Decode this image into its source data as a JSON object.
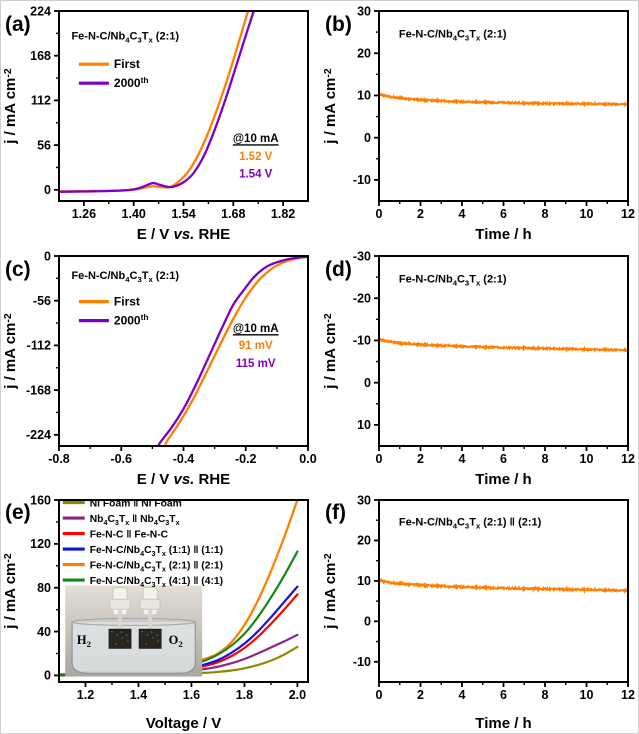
{
  "figure_background": "#ffffff",
  "axis_color": "#000000",
  "chart_data": [
    {
      "letter": "(a)",
      "type": "line",
      "xlabel": "E / V vs. RHE",
      "ylabel": "j / mA cm⁻²",
      "xlim": [
        1.19,
        1.89
      ],
      "ylim": [
        -14,
        224
      ],
      "xtick_vals": [
        1.26,
        1.4,
        1.54,
        1.68,
        1.82
      ],
      "xtick_labels": [
        "1.26",
        "1.40",
        "1.54",
        "1.68",
        "1.82"
      ],
      "ytick_vals": [
        0,
        56,
        112,
        168,
        224
      ],
      "ytick_labels": [
        "0",
        "56",
        "112",
        "168",
        "224"
      ],
      "title": {
        "text": "Fe-N-C/Nb₄C₃Tₓ (2:1)",
        "x": 0.05,
        "y": 0.15,
        "size": 11
      },
      "legend": {
        "x": 0.08,
        "y": 0.3,
        "dy": 19,
        "sample": 30,
        "size": 12,
        "items": [
          {
            "label": "First",
            "color": "#FF8000"
          },
          {
            "label": "2000ᵗʰ",
            "color": "#7D00C8"
          }
        ]
      },
      "annotations": [
        {
          "text": "@10 mA",
          "color": "#000000",
          "underline": true,
          "x": 0.79,
          "y": 0.69,
          "size": 11.5
        },
        {
          "text": "1.52 V",
          "color": "#FF8000",
          "x": 0.79,
          "y": 0.785,
          "size": 11.5
        },
        {
          "text": "1.54 V",
          "color": "#7D00C8",
          "x": 0.79,
          "y": 0.875,
          "size": 11.5
        }
      ],
      "series": [
        {
          "name": "First",
          "color": "#FF8000",
          "width": 2.3,
          "x": [
            1.19,
            1.26,
            1.33,
            1.38,
            1.41,
            1.44,
            1.455,
            1.475,
            1.5,
            1.52,
            1.54,
            1.56,
            1.585,
            1.61,
            1.64,
            1.67,
            1.7,
            1.735
          ],
          "y": [
            -2,
            -1.7,
            -1.2,
            -0.4,
            0.8,
            3.5,
            4.5,
            3.5,
            3.2,
            8,
            16,
            27,
            47,
            72,
            108,
            148,
            192,
            245
          ]
        },
        {
          "name": "2000th",
          "color": "#7D00C8",
          "width": 2.3,
          "x": [
            1.19,
            1.26,
            1.33,
            1.38,
            1.41,
            1.435,
            1.455,
            1.475,
            1.5,
            1.52,
            1.545,
            1.57,
            1.6,
            1.63,
            1.66,
            1.69,
            1.72,
            1.755
          ],
          "y": [
            -2.5,
            -2,
            -1.5,
            -0.5,
            1.5,
            5.5,
            8.5,
            6,
            3.5,
            5,
            11,
            22,
            45,
            78,
            116,
            158,
            200,
            248
          ]
        }
      ]
    },
    {
      "letter": "(b)",
      "type": "line",
      "xlabel": "Time / h",
      "ylabel": "j / mA cm⁻²",
      "xlim": [
        0,
        12
      ],
      "ylim": [
        -15,
        30
      ],
      "xtick_vals": [
        0,
        2,
        4,
        6,
        8,
        10,
        12
      ],
      "xtick_labels": [
        "0",
        "2",
        "4",
        "6",
        "8",
        "10",
        "12"
      ],
      "ytick_vals": [
        -10,
        0,
        10,
        20,
        30
      ],
      "ytick_labels": [
        "-10",
        "0",
        "10",
        "20",
        "30"
      ],
      "title": {
        "text": "Fe-N-C/Nb₄C₃Tₓ (2:1)",
        "x": 0.08,
        "y": 0.14,
        "size": 11
      },
      "series": [
        {
          "name": "stability",
          "color": "#FF8000",
          "width": 2.0,
          "noise": 0.35,
          "x": [
            0,
            0.3,
            0.8,
            1.5,
            2.5,
            4,
            6,
            8,
            10,
            12
          ],
          "y": [
            10.3,
            9.9,
            9.5,
            9.1,
            8.8,
            8.5,
            8.3,
            8.1,
            8.0,
            7.9
          ]
        }
      ]
    },
    {
      "letter": "(c)",
      "type": "line",
      "xlabel": "E / V vs. RHE",
      "ylabel": "j / mA cm⁻²",
      "xlim": [
        -0.8,
        0
      ],
      "ylim": [
        -238,
        0
      ],
      "xtick_vals": [
        -0.8,
        -0.6,
        -0.4,
        -0.2,
        0.0
      ],
      "xtick_labels": [
        "-0.8",
        "-0.6",
        "-0.4",
        "-0.2",
        "0.0"
      ],
      "ytick_vals": [
        -224,
        -168,
        -112,
        -56,
        0
      ],
      "ytick_labels": [
        "-224",
        "-168",
        "-112",
        "-56",
        "0"
      ],
      "title": {
        "text": "Fe-N-C/Nb₄C₃Tₓ (2:1)",
        "x": 0.05,
        "y": 0.12,
        "size": 11
      },
      "legend": {
        "x": 0.08,
        "y": 0.26,
        "dy": 19,
        "sample": 30,
        "size": 12,
        "items": [
          {
            "label": "First",
            "color": "#FF8000"
          },
          {
            "label": "2000ᵗʰ",
            "color": "#7D00C8"
          }
        ]
      },
      "annotations": [
        {
          "text": "@10 mA",
          "color": "#000000",
          "underline": true,
          "x": 0.79,
          "y": 0.4,
          "size": 11.5
        },
        {
          "text": "91 mV",
          "color": "#FF8000",
          "x": 0.79,
          "y": 0.49,
          "size": 11.5
        },
        {
          "text": "115 mV",
          "color": "#7D00C8",
          "x": 0.79,
          "y": 0.585,
          "size": 11.5
        }
      ],
      "series": [
        {
          "name": "First",
          "color": "#FF8000",
          "width": 2.3,
          "x": [
            0,
            -0.03,
            -0.06,
            -0.091,
            -0.12,
            -0.15,
            -0.18,
            -0.21,
            -0.25,
            -0.29,
            -0.33,
            -0.37,
            -0.41,
            -0.45,
            -0.458
          ],
          "y": [
            -1,
            -2.5,
            -5.5,
            -10,
            -17,
            -27,
            -41,
            -58,
            -86,
            -117,
            -149,
            -180,
            -207,
            -230,
            -236
          ]
        },
        {
          "name": "2000th",
          "color": "#7D00C8",
          "width": 2.3,
          "x": [
            0,
            -0.03,
            -0.07,
            -0.115,
            -0.145,
            -0.175,
            -0.205,
            -0.24,
            -0.275,
            -0.315,
            -0.355,
            -0.395,
            -0.435,
            -0.472,
            -0.48
          ],
          "y": [
            -1,
            -2,
            -4.5,
            -10,
            -16.5,
            -27,
            -42,
            -61,
            -89,
            -123,
            -157,
            -188,
            -213,
            -232,
            -237
          ]
        }
      ]
    },
    {
      "letter": "(d)",
      "type": "line",
      "xlabel": "Time / h",
      "ylabel": "j / mA cm⁻²",
      "xlim": [
        0,
        12
      ],
      "ylim": [
        15,
        -30
      ],
      "xtick_vals": [
        0,
        2,
        4,
        6,
        8,
        10,
        12
      ],
      "xtick_labels": [
        "0",
        "2",
        "4",
        "6",
        "8",
        "10",
        "12"
      ],
      "ytick_vals": [
        -30,
        -20,
        -10,
        0,
        10
      ],
      "ytick_labels": [
        "-30",
        "-20",
        "-10",
        "0",
        "10"
      ],
      "title": {
        "text": "Fe-N-C/Nb₄C₃Tₓ (2:1)",
        "x": 0.08,
        "y": 0.14,
        "size": 11
      },
      "series": [
        {
          "name": "stability",
          "color": "#FF8000",
          "width": 2.0,
          "noise": 0.35,
          "x": [
            0,
            0.3,
            0.8,
            1.5,
            2.5,
            4,
            6,
            8,
            10,
            12
          ],
          "y": [
            -10.2,
            -9.9,
            -9.5,
            -9.2,
            -8.9,
            -8.6,
            -8.3,
            -8.1,
            -7.9,
            -7.7
          ]
        }
      ]
    },
    {
      "letter": "(e)",
      "type": "line",
      "xlabel": "Voltage / V",
      "ylabel": "j / mA cm⁻²",
      "xlim": [
        1.1,
        2.04
      ],
      "ylim": [
        -6,
        160
      ],
      "xtick_vals": [
        1.2,
        1.4,
        1.6,
        1.8,
        2.0
      ],
      "xtick_labels": [
        "1.2",
        "1.4",
        "1.6",
        "1.8",
        "2.0"
      ],
      "ytick_vals": [
        0,
        40,
        80,
        120,
        160
      ],
      "ytick_labels": [
        "0",
        "40",
        "80",
        "120",
        "160"
      ],
      "legend": {
        "x": 0.015,
        "y": 0.035,
        "dy": 15.5,
        "sample": 22,
        "size": 10.3,
        "items": [
          {
            "label": "Ni Foam ‖ Ni Foam",
            "color": "#8B8B00"
          },
          {
            "label": "Nb₄C₃Tₓ ‖ Nb₄C₃Tₓ",
            "color": "#8E218E"
          },
          {
            "label": "Fe-N-C ‖ Fe-N-C",
            "color": "#FF0000"
          },
          {
            "label": "Fe-N-C/Nb₄C₃Tₓ (1:1) ‖ (1:1)",
            "color": "#1414DC"
          },
          {
            "label": "Fe-N-C/Nb₄C₃Tₓ (2:1) ‖ (2:1)",
            "color": "#FF8000"
          },
          {
            "label": "Fe-N-C/Nb₄C₃Tₓ (4:1) ‖ (4:1)",
            "color": "#168616"
          }
        ]
      },
      "inset": {
        "x": 0.025,
        "y": 0.47,
        "w": 0.55,
        "h": 0.5,
        "labels": [
          "H₂",
          "O₂"
        ]
      },
      "series": [
        {
          "name": "Ni Foam",
          "color": "#8B8B00",
          "width": 2.2,
          "x": [
            1.1,
            1.15,
            1.2,
            1.25,
            1.3,
            1.35,
            1.4,
            1.45,
            1.5,
            1.55,
            1.6,
            1.65,
            1.7,
            1.75,
            1.8,
            1.85,
            1.9,
            1.95,
            2.0
          ],
          "y": [
            0,
            0,
            0,
            0.1,
            0.2,
            0.3,
            0.4,
            0.6,
            0.9,
            1.2,
            1.7,
            2.3,
            3.2,
            4.5,
            6.5,
            9.5,
            13.5,
            19,
            26
          ]
        },
        {
          "name": "Nb4C3Tx",
          "color": "#8E218E",
          "width": 2.2,
          "x": [
            1.1,
            1.15,
            1.2,
            1.25,
            1.3,
            1.35,
            1.4,
            1.45,
            1.5,
            1.55,
            1.6,
            1.65,
            1.7,
            1.75,
            1.8,
            1.85,
            1.9,
            1.95,
            2.0
          ],
          "y": [
            0.2,
            0.3,
            0.4,
            0.5,
            0.7,
            0.9,
            1.2,
            1.6,
            2.2,
            3,
            4.2,
            5.8,
            8,
            11,
            15,
            20,
            25.5,
            31,
            37
          ]
        },
        {
          "name": "Fe-N-C",
          "color": "#FF0000",
          "width": 2.2,
          "x": [
            1.1,
            1.15,
            1.2,
            1.25,
            1.3,
            1.35,
            1.4,
            1.45,
            1.5,
            1.55,
            1.6,
            1.65,
            1.7,
            1.75,
            1.8,
            1.85,
            1.9,
            1.95,
            2.0
          ],
          "y": [
            0.2,
            0.3,
            0.4,
            0.6,
            0.8,
            1.1,
            1.5,
            2.1,
            3,
            4.3,
            6,
            8.5,
            12,
            17.5,
            25,
            35,
            47,
            60,
            74
          ]
        },
        {
          "name": "1:1",
          "color": "#1414DC",
          "width": 2.2,
          "x": [
            1.1,
            1.15,
            1.2,
            1.25,
            1.3,
            1.35,
            1.4,
            1.45,
            1.5,
            1.55,
            1.6,
            1.65,
            1.7,
            1.75,
            1.8,
            1.85,
            1.9,
            1.95,
            2.0
          ],
          "y": [
            0.3,
            0.4,
            0.6,
            0.8,
            1.1,
            1.5,
            2,
            2.7,
            3.6,
            5,
            7,
            10,
            14,
            20.5,
            29,
            40,
            53,
            67,
            81
          ]
        },
        {
          "name": "2:1",
          "color": "#FF8000",
          "width": 2.3,
          "x": [
            1.1,
            1.15,
            1.2,
            1.25,
            1.3,
            1.35,
            1.4,
            1.45,
            1.5,
            1.55,
            1.6,
            1.65,
            1.7,
            1.75,
            1.8,
            1.85,
            1.9,
            1.95,
            2.0
          ],
          "y": [
            1.2,
            1.5,
            1.9,
            2.4,
            3,
            3.8,
            5,
            6.5,
            8.5,
            10.5,
            12.5,
            15,
            20,
            30,
            46,
            68,
            95,
            126,
            160
          ]
        },
        {
          "name": "4:1",
          "color": "#168616",
          "width": 2.2,
          "x": [
            1.1,
            1.15,
            1.2,
            1.25,
            1.3,
            1.35,
            1.4,
            1.45,
            1.5,
            1.55,
            1.6,
            1.65,
            1.7,
            1.75,
            1.8,
            1.85,
            1.9,
            1.95,
            2.0
          ],
          "y": [
            0.4,
            0.6,
            0.8,
            1.1,
            1.5,
            2,
            2.7,
            3.6,
            5,
            7,
            9.5,
            13.5,
            19,
            27,
            38,
            53,
            71,
            91,
            113
          ]
        }
      ]
    },
    {
      "letter": "(f)",
      "type": "line",
      "xlabel": "Time / h",
      "ylabel": "j / mA cm⁻²",
      "xlim": [
        0,
        12
      ],
      "ylim": [
        -15,
        30
      ],
      "xtick_vals": [
        0,
        2,
        4,
        6,
        8,
        10,
        12
      ],
      "xtick_labels": [
        "0",
        "2",
        "4",
        "6",
        "8",
        "10",
        "12"
      ],
      "ytick_vals": [
        -10,
        0,
        10,
        20,
        30
      ],
      "ytick_labels": [
        "-10",
        "0",
        "10",
        "20",
        "30"
      ],
      "title": {
        "text": "Fe-N-C/Nb₄C₃Tₓ (2:1) ‖ (2:1)",
        "x": 0.08,
        "y": 0.14,
        "size": 11
      },
      "series": [
        {
          "name": "stability",
          "color": "#FF8000",
          "width": 2.0,
          "noise": 0.4,
          "x": [
            0,
            0.3,
            0.8,
            1.5,
            2.5,
            4,
            6,
            8,
            10,
            12
          ],
          "y": [
            10.2,
            9.8,
            9.4,
            9.1,
            8.8,
            8.5,
            8.2,
            8.0,
            7.8,
            7.6
          ]
        }
      ]
    }
  ]
}
